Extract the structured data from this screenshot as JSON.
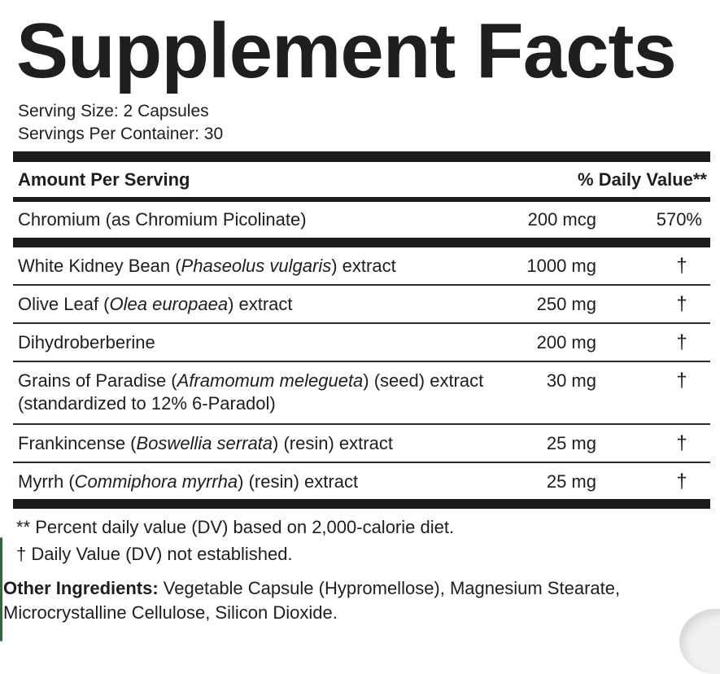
{
  "label": {
    "title": "Supplement Facts",
    "serving_size": "Serving Size: 2 Capsules",
    "servings_per_container": "Servings Per Container: 30",
    "header_left": "Amount Per Serving",
    "header_right": "% Daily Value**",
    "chromium": {
      "name": "Chromium (as Chromium Picolinate)",
      "amount": "200 mcg",
      "dv": "570%"
    },
    "ingredients": [
      {
        "pre": "White Kidney Bean (",
        "italic": "Phaseolus vulgaris",
        "post": ") extract",
        "amount": "1000 mg",
        "dv": "†"
      },
      {
        "pre": "Olive Leaf (",
        "italic": "Olea europaea",
        "post": ") extract",
        "amount": "250 mg",
        "dv": "†"
      },
      {
        "pre": "Dihydroberberine",
        "italic": "",
        "post": "",
        "amount": "200 mg",
        "dv": "†"
      },
      {
        "pre": "Grains of Paradise (",
        "italic": "Aframomum melegueta",
        "post": ") (seed) extract",
        "line2": "(standardized to 12% 6-Paradol)",
        "amount": "30 mg",
        "dv": "†"
      },
      {
        "pre": "Frankincense (",
        "italic": "Boswellia serrata",
        "post": ") (resin) extract",
        "amount": "25 mg",
        "dv": "†"
      },
      {
        "pre": "Myrrh (",
        "italic": "Commiphora myrrha",
        "post": ") (resin) extract",
        "amount": "25 mg",
        "dv": "†"
      }
    ],
    "footnote_1": "** Percent daily value (DV) based on 2,000-calorie diet.",
    "footnote_2": "† Daily Value (DV) not established.",
    "other_label": "Other Ingredients:",
    "other_text": " Vegetable Capsule (Hypromellose), Magnesium Stearate, Microcrystalline Cellulose, Silicon Dioxide."
  }
}
